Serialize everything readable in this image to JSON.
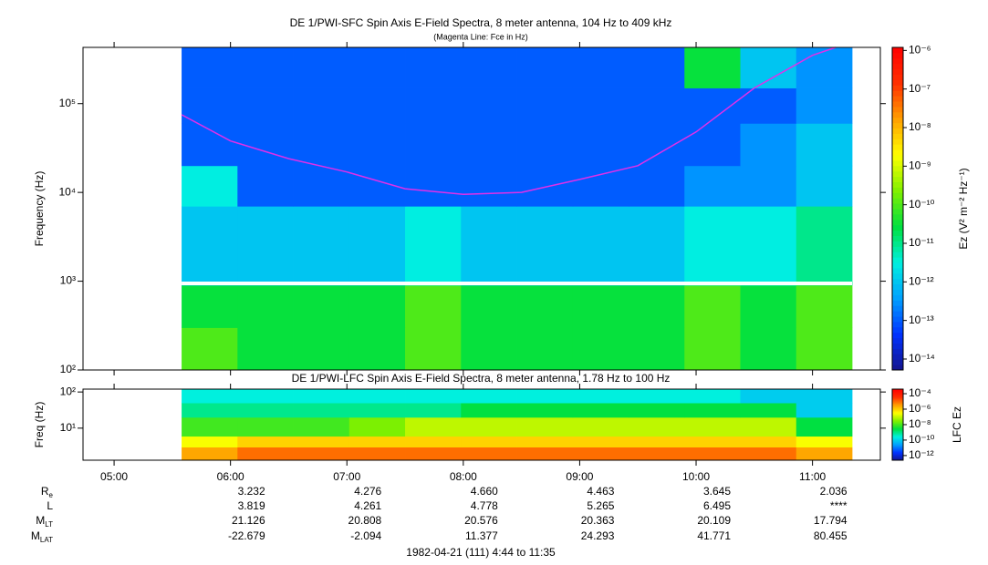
{
  "chart_data": [
    {
      "type": "heatmap",
      "title": "DE 1/PWI-SFC  Spin Axis E-Field Spectra, 8 meter antenna, 104 Hz to 409 kHz",
      "subtitle": "(Magenta Line: Fce in Hz)",
      "ylabel": "Frequency (Hz)",
      "log_y": true,
      "xlim": [
        4.733,
        11.583
      ],
      "ylim": [
        100,
        430000
      ],
      "yticks": [
        {
          "value": 100,
          "label": "10²"
        },
        {
          "value": 1000,
          "label": "10³"
        },
        {
          "value": 10000,
          "label": "10⁴"
        },
        {
          "value": 100000,
          "label": "10⁵"
        }
      ],
      "time_edges": [
        5.58,
        6.06,
        6.54,
        7.02,
        7.5,
        7.98,
        8.46,
        8.94,
        9.42,
        9.9,
        10.38,
        10.86,
        11.34
      ],
      "freq_edges": [
        100,
        300,
        900,
        7000,
        20000,
        60000,
        150000,
        430000
      ],
      "z": [
        [
          1e-10,
          3e-11,
          3e-11,
          3e-11,
          1e-10,
          3e-11,
          3e-11,
          3e-11,
          3e-11,
          1e-10,
          3e-11,
          1e-10
        ],
        [
          3e-11,
          3e-11,
          3e-11,
          3e-11,
          1e-10,
          3e-11,
          3e-11,
          3e-11,
          3e-11,
          1e-10,
          3e-11,
          1e-10
        ],
        [
          1e-12,
          1e-12,
          1e-12,
          1e-12,
          3e-12,
          1e-12,
          1e-12,
          1e-12,
          1e-12,
          3e-12,
          3e-12,
          1e-11
        ],
        [
          3e-12,
          1e-13,
          1e-13,
          1e-13,
          1e-13,
          1e-13,
          1e-13,
          1e-13,
          1e-13,
          3e-13,
          3e-13,
          1e-12
        ],
        [
          1e-13,
          1e-13,
          1e-13,
          1e-13,
          1e-13,
          1e-13,
          1e-13,
          1e-13,
          1e-13,
          1e-13,
          3e-13,
          1e-12
        ],
        [
          1e-13,
          1e-13,
          1e-13,
          1e-13,
          1e-13,
          1e-13,
          1e-13,
          1e-13,
          1e-13,
          1e-13,
          1e-13,
          3e-13
        ],
        [
          1e-13,
          1e-13,
          1e-13,
          1e-13,
          1e-13,
          1e-13,
          1e-13,
          1e-13,
          1e-13,
          3e-11,
          1e-12,
          3e-13
        ]
      ],
      "line": {
        "color": "#e030e8",
        "x": [
          5.58,
          6.0,
          6.5,
          7.0,
          7.5,
          8.0,
          8.5,
          9.0,
          9.5,
          10.0,
          10.5,
          11.0,
          11.2
        ],
        "values": [
          75000,
          38000,
          24000,
          17000,
          11000,
          9500,
          10000,
          14000,
          20000,
          48000,
          150000,
          350000,
          430000
        ]
      },
      "colormap": [
        "#14148c",
        "#0032ff",
        "#00a0ff",
        "#00f0e0",
        "#00e040",
        "#80f000",
        "#ffff00",
        "#ffa000",
        "#ff3000",
        "#ff0000"
      ],
      "colorbar": {
        "label": "Ez (V² m⁻² Hz⁻¹)",
        "log": true,
        "zlim": [
          5.2e-15,
          1.2e-06
        ],
        "ticks": [
          {
            "value": 1e-06,
            "label": "10⁻⁶"
          },
          {
            "value": 1e-07,
            "label": "10⁻⁷"
          },
          {
            "value": 1e-08,
            "label": "10⁻⁸"
          },
          {
            "value": 1e-09,
            "label": "10⁻⁹"
          },
          {
            "value": 1e-10,
            "label": "10⁻¹⁰"
          },
          {
            "value": 1e-11,
            "label": "10⁻¹¹"
          },
          {
            "value": 1e-12,
            "label": "10⁻¹²"
          },
          {
            "value": 1e-13,
            "label": "10⁻¹³"
          },
          {
            "value": 1e-14,
            "label": "10⁻¹⁴"
          }
        ]
      }
    },
    {
      "type": "heatmap",
      "title": "DE 1/PWI-LFC  Spin Axis E-Field Spectra, 8 meter antenna, 1.78 Hz to 100 Hz",
      "ylabel": "Freq (Hz)",
      "log_y": true,
      "xlim": [
        4.733,
        11.583
      ],
      "xticks": [
        {
          "value": 5,
          "label": "05:00"
        },
        {
          "value": 6,
          "label": "06:00"
        },
        {
          "value": 7,
          "label": "07:00"
        },
        {
          "value": 8,
          "label": "08:00"
        },
        {
          "value": 9,
          "label": "09:00"
        },
        {
          "value": 10,
          "label": "10:00"
        },
        {
          "value": 11,
          "label": "11:00"
        }
      ],
      "ylim": [
        1.3,
        120
      ],
      "yticks": [
        {
          "value": 10,
          "label": "10¹"
        },
        {
          "value": 100,
          "label": "10²"
        }
      ],
      "time_edges": [
        5.58,
        6.06,
        6.54,
        7.02,
        7.5,
        7.98,
        8.46,
        8.94,
        9.42,
        9.9,
        10.38,
        10.86,
        11.34
      ],
      "freq_edges": [
        1.3,
        3,
        6,
        20,
        50,
        120
      ],
      "z": [
        [
          3e-06,
          1e-05,
          1e-05,
          1e-05,
          1e-05,
          1e-05,
          1e-05,
          1e-05,
          1e-05,
          1e-05,
          1e-05,
          3e-06
        ],
        [
          3e-07,
          1e-06,
          1e-06,
          1e-06,
          1e-06,
          1e-06,
          1e-06,
          1e-06,
          1e-06,
          1e-06,
          1e-06,
          3e-07
        ],
        [
          1e-08,
          1e-08,
          1e-08,
          3e-08,
          1e-07,
          1e-07,
          1e-07,
          1e-07,
          1e-07,
          1e-07,
          1e-07,
          3e-09
        ],
        [
          1e-09,
          1e-09,
          1e-09,
          1e-09,
          1e-09,
          3e-09,
          3e-09,
          3e-09,
          3e-09,
          3e-09,
          3e-09,
          1e-10
        ],
        [
          3e-10,
          3e-10,
          3e-10,
          3e-10,
          3e-10,
          3e-10,
          3e-10,
          3e-10,
          3e-10,
          3e-10,
          1e-10,
          1e-10
        ]
      ],
      "colormap": [
        "#14148c",
        "#0032ff",
        "#00a0ff",
        "#00f0e0",
        "#00e040",
        "#80f000",
        "#ffff00",
        "#ffa000",
        "#ff3000",
        "#ff0000"
      ],
      "colorbar": {
        "label": "LFC Ez",
        "log": true,
        "zlim": [
          2.5e-13,
          0.00039
        ],
        "ticks": [
          {
            "value": 0.0001,
            "label": "10⁻⁴"
          },
          {
            "value": 1e-06,
            "label": "10⁻⁶"
          },
          {
            "value": 1e-08,
            "label": "10⁻⁸"
          },
          {
            "value": 1e-10,
            "label": "10⁻¹⁰"
          },
          {
            "value": 1e-12,
            "label": "10⁻¹²"
          }
        ]
      }
    }
  ],
  "ephemeris": {
    "rows": [
      {
        "name": "R",
        "sub": "e",
        "values": [
          "3.232",
          "4.276",
          "4.660",
          "4.463",
          "3.645",
          "2.036"
        ]
      },
      {
        "name": "L",
        "values": [
          "3.819",
          "4.261",
          "4.778",
          "5.265",
          "6.495",
          "****"
        ]
      },
      {
        "name": "M",
        "sub": "LT",
        "values": [
          "21.126",
          "20.808",
          "20.576",
          "20.363",
          "20.109",
          "17.794"
        ]
      },
      {
        "name": "M",
        "sub": "LAT",
        "values": [
          "-22.679",
          "-2.094",
          "11.377",
          "24.293",
          "41.771",
          "80.455"
        ]
      }
    ]
  },
  "footer": "1982-04-21 (111) 4:44 to 11:35"
}
